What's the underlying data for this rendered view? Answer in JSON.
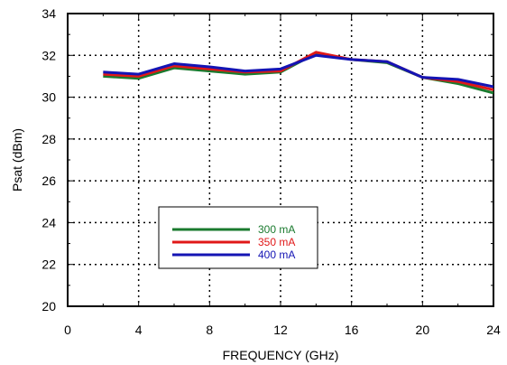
{
  "chart_data": {
    "type": "line",
    "xlabel": "FREQUENCY (GHz)",
    "ylabel": "Psat (dBm)",
    "xlim": [
      0,
      24
    ],
    "ylim": [
      20,
      34
    ],
    "xticks": [
      0,
      4,
      8,
      12,
      16,
      20,
      24
    ],
    "yticks": [
      20,
      22,
      24,
      26,
      28,
      30,
      32,
      34
    ],
    "grid": "dotted",
    "legend_position": "bottom-left",
    "x": [
      2,
      4,
      6,
      8,
      10,
      12,
      14,
      16,
      18,
      20,
      22,
      24
    ],
    "series": [
      {
        "name": "300 mA",
        "color": "#1a7a2e",
        "values": [
          31.0,
          30.9,
          31.4,
          31.25,
          31.1,
          31.2,
          32.1,
          31.8,
          31.65,
          30.95,
          30.65,
          30.2
        ]
      },
      {
        "name": "350 mA",
        "color": "#e01818",
        "values": [
          31.1,
          31.0,
          31.5,
          31.35,
          31.2,
          31.25,
          32.15,
          31.8,
          31.7,
          30.95,
          30.75,
          30.35
        ]
      },
      {
        "name": "400 mA",
        "color": "#1414b4",
        "values": [
          31.2,
          31.1,
          31.6,
          31.45,
          31.25,
          31.35,
          32.0,
          31.8,
          31.7,
          30.95,
          30.85,
          30.5
        ]
      }
    ]
  }
}
